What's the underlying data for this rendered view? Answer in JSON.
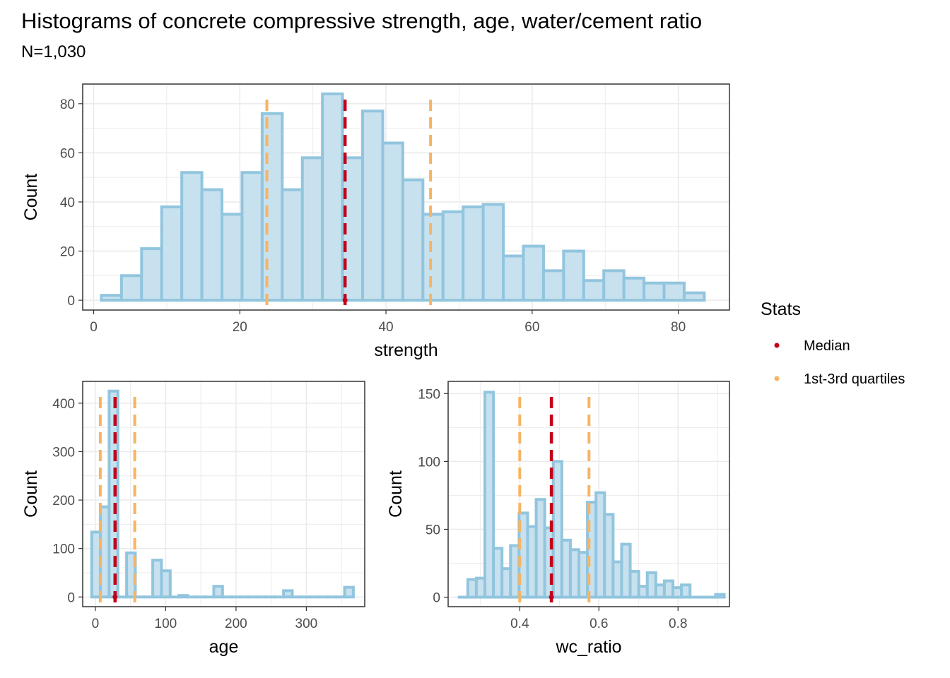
{
  "title": "Histograms of concrete compressive strength, age, water/cement ratio",
  "subtitle": "N=1,030",
  "legend": {
    "title": "Stats",
    "items": [
      {
        "label": "Median",
        "color": "#c4001a"
      },
      {
        "label": "1st-3rd quartiles",
        "color": "#f7b462"
      }
    ]
  },
  "colors": {
    "bar_fill": "#c8e1ef",
    "bar_stroke": "#92c5de",
    "median": "#c4001a",
    "quartile": "#f7b462",
    "grid": "#ebebeb",
    "panel_border": "#333333"
  },
  "chart_data": [
    {
      "type": "bar",
      "name": "strength",
      "xlabel": "strength",
      "ylabel": "Count",
      "xlim": [
        -1.5,
        87
      ],
      "ylim": [
        -4,
        88
      ],
      "xticks": [
        0,
        20,
        40,
        60,
        80
      ],
      "yticks": [
        0,
        20,
        40,
        60,
        80
      ],
      "bin_width": 2.75,
      "bin_centers": [
        2.43,
        5.18,
        7.93,
        10.68,
        13.43,
        16.18,
        18.93,
        21.68,
        24.43,
        27.18,
        29.93,
        32.68,
        35.43,
        38.18,
        40.93,
        43.68,
        46.43,
        49.18,
        51.93,
        54.68,
        57.43,
        60.18,
        62.93,
        65.68,
        68.43,
        71.18,
        73.93,
        76.68,
        79.43,
        82.18
      ],
      "values": [
        2,
        10,
        21,
        38,
        52,
        45,
        35,
        52,
        76,
        45,
        58,
        84,
        58,
        77,
        64,
        49,
        35,
        36,
        38,
        39,
        18,
        22,
        12,
        20,
        8,
        12,
        9,
        7,
        7,
        3
      ],
      "median": 34.4,
      "quartiles": [
        23.7,
        46.1
      ]
    },
    {
      "type": "bar",
      "name": "age",
      "xlabel": "age",
      "ylabel": "Count",
      "xlim": [
        -18,
        383
      ],
      "ylim": [
        -20,
        445
      ],
      "xticks": [
        0,
        100,
        200,
        300
      ],
      "yticks": [
        0,
        100,
        200,
        300,
        400
      ],
      "bin_width": 12.4,
      "bin_centers": [
        1,
        13.4,
        25.8,
        38.2,
        50.6,
        63,
        75.4,
        87.8,
        100.2,
        112.6,
        125,
        137.4,
        149.8,
        162.2,
        174.6,
        187,
        199.4,
        211.8,
        224.2,
        236.6,
        249,
        261.4,
        273.8,
        286.2,
        298.6,
        311,
        323.4,
        335.8,
        348.2,
        360.6
      ],
      "values": [
        134,
        186,
        425,
        0,
        91,
        0,
        0,
        76,
        54,
        0,
        3,
        0,
        0,
        0,
        22,
        0,
        0,
        0,
        0,
        0,
        0,
        0,
        13,
        0,
        0,
        0,
        0,
        0,
        0,
        20
      ],
      "median": 28,
      "quartiles": [
        7,
        56
      ]
    },
    {
      "type": "bar",
      "name": "wc_ratio",
      "xlabel": "wc_ratio",
      "ylabel": "Count",
      "xlim": [
        0.219,
        0.93
      ],
      "ylim": [
        -7,
        159
      ],
      "xticks": [
        0.4,
        0.6,
        0.8
      ],
      "xtick_labels": [
        "0.4",
        "0.6",
        "0.8"
      ],
      "yticks": [
        0,
        50,
        100,
        150
      ],
      "bin_width": 0.0216,
      "bin_centers": [
        0.2579,
        0.2795,
        0.3011,
        0.3227,
        0.3443,
        0.3659,
        0.3875,
        0.4091,
        0.4307,
        0.4523,
        0.4739,
        0.4955,
        0.5171,
        0.5387,
        0.5603,
        0.5819,
        0.6035,
        0.6251,
        0.6467,
        0.6683,
        0.6899,
        0.7115,
        0.7331,
        0.7547,
        0.7763,
        0.7979,
        0.8195,
        0.8411,
        0.8627,
        0.8843,
        0.9059
      ],
      "values": [
        0,
        13,
        14,
        151,
        36,
        21,
        38,
        62,
        52,
        72,
        51,
        100,
        42,
        35,
        33,
        70,
        77,
        61,
        26,
        39,
        19,
        8,
        18,
        9,
        12,
        7,
        9,
        0,
        0,
        0,
        2
      ],
      "median": 0.48,
      "quartiles": [
        0.4,
        0.575
      ]
    }
  ]
}
